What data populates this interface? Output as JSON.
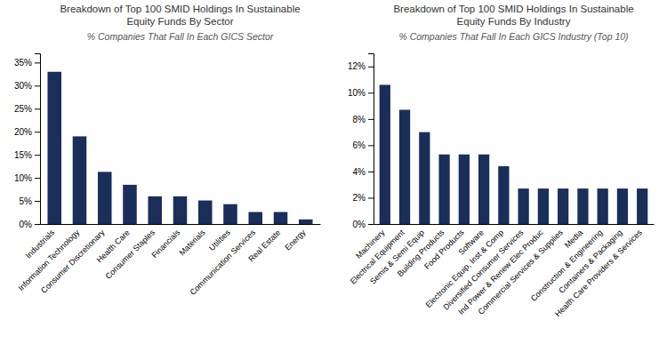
{
  "chart_data": [
    {
      "type": "bar",
      "title": [
        "Breakdown of Top 100 SMID Holdings In Sustainable",
        "Equity Funds By Sector"
      ],
      "subtitle": "% Companies That Fall In Each GICS Sector",
      "categories": [
        "Industrials",
        "Information Technology",
        "Consumer Discretionary",
        "Health Care",
        "Consumer Staples",
        "Financials",
        "Materials",
        "Utilities",
        "Communication Services",
        "Real Estate",
        "Energy"
      ],
      "values": [
        33,
        19,
        11.3,
        8.5,
        6.0,
        6.0,
        5.1,
        4.3,
        2.6,
        2.6,
        1.0
      ],
      "color": "#1a2e5a",
      "ylim": [
        0,
        37
      ],
      "yticks": [
        {
          "value": 0,
          "label": "0%"
        },
        {
          "value": 5,
          "label": "5%"
        },
        {
          "value": 10,
          "label": "10%"
        },
        {
          "value": 15,
          "label": "15%"
        },
        {
          "value": 20,
          "label": "20%"
        },
        {
          "value": 25,
          "label": "25%"
        },
        {
          "value": 30,
          "label": "30%"
        },
        {
          "value": 35,
          "label": "35%"
        }
      ],
      "grid": false
    },
    {
      "type": "bar",
      "title": [
        "Breakdown of Top 100 SMID Holdings In Sustainable",
        "Equity Funds By Industry"
      ],
      "subtitle": "% Companies That Fall In Each GICS Industry (Top 10)",
      "categories": [
        "Machinery",
        "Electrical Equipment",
        "Semis & Semi Equip",
        "Building Products",
        "Food Products",
        "Software",
        "Electronic Equip, Inst & Comp",
        "Diversified Consumer Services",
        "Ind Power & Renew Elec Produc",
        "Commercial Services & Supplies",
        "Media",
        "Construction & Engineering",
        "Containers & Packaging",
        "Health Care Providers & Services"
      ],
      "values": [
        10.6,
        8.7,
        7.0,
        5.3,
        5.3,
        5.3,
        4.4,
        2.7,
        2.7,
        2.7,
        2.7,
        2.7,
        2.7,
        2.7
      ],
      "color": "#1a2e5a",
      "ylim": [
        0,
        13
      ],
      "yticks": [
        {
          "value": 0,
          "label": "0%"
        },
        {
          "value": 2,
          "label": "2%"
        },
        {
          "value": 4,
          "label": "4%"
        },
        {
          "value": 6,
          "label": "6%"
        },
        {
          "value": 8,
          "label": "8%"
        },
        {
          "value": 10,
          "label": "10%"
        },
        {
          "value": 12,
          "label": "12%"
        }
      ],
      "grid": false
    }
  ]
}
